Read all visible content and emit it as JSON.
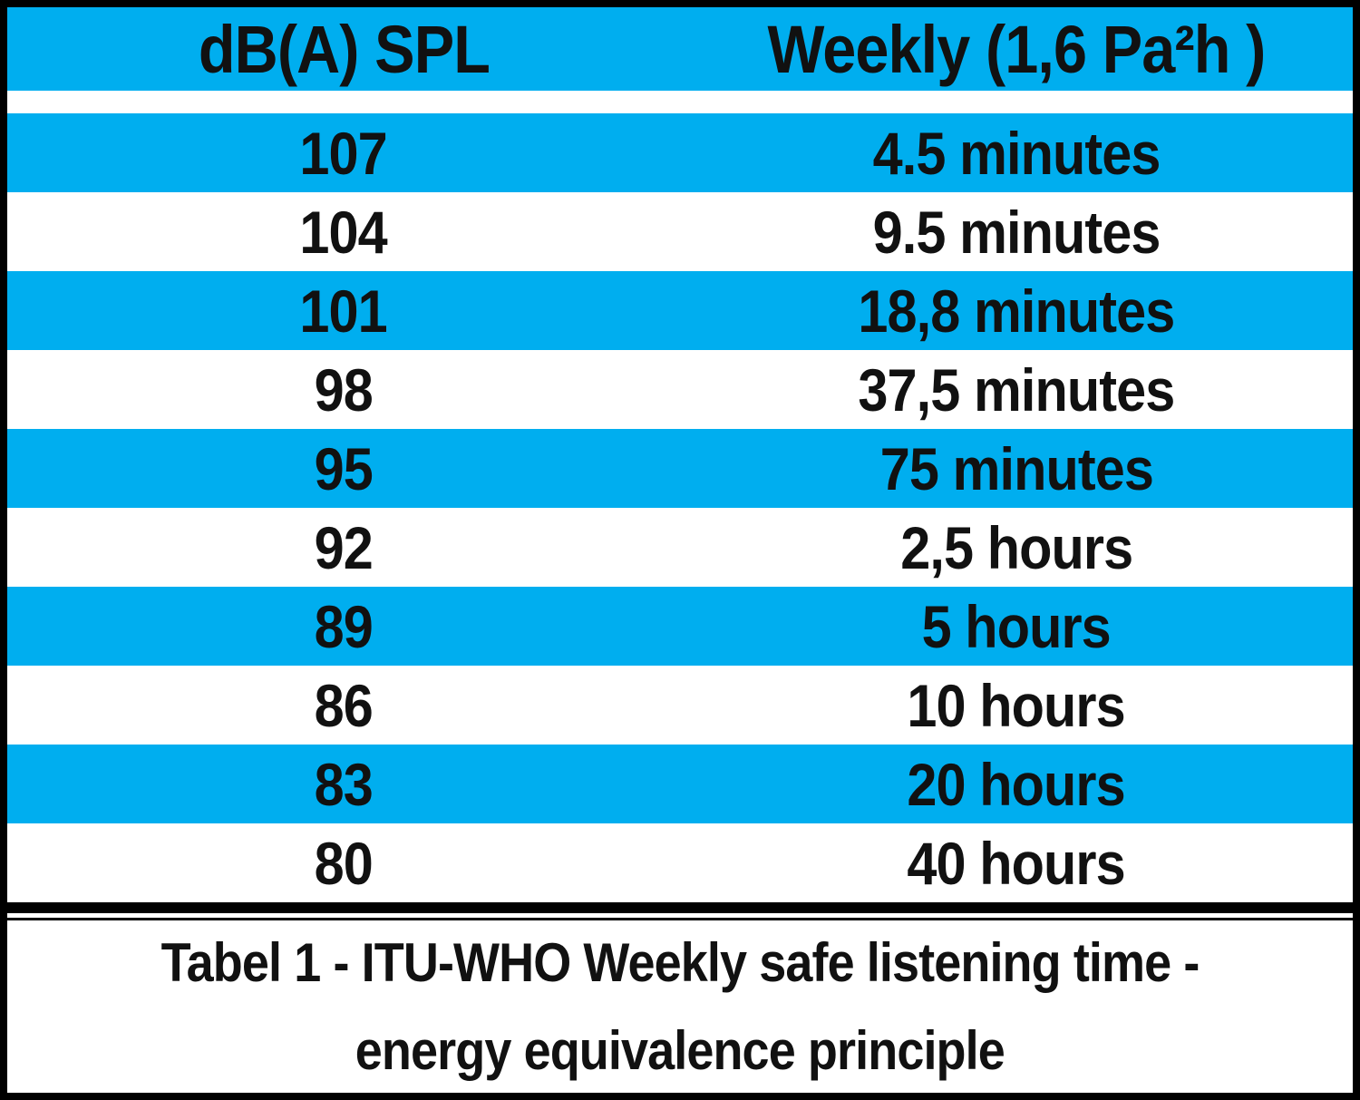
{
  "chart_data": {
    "type": "table",
    "title": "Tabel 1 - ITU-WHO Weekly safe listening time - energy equivalence principle",
    "columns": [
      "dB(A) SPL",
      "Weekly (1,6 Pa²h )"
    ],
    "rows": [
      [
        "107",
        "4.5 minutes"
      ],
      [
        "104",
        "9.5 minutes"
      ],
      [
        "101",
        "18,8 minutes"
      ],
      [
        "98",
        "37,5 minutes"
      ],
      [
        "95",
        "75 minutes"
      ],
      [
        "92",
        "2,5 hours"
      ],
      [
        "89",
        "5 hours"
      ],
      [
        "86",
        "10 hours"
      ],
      [
        "83",
        "20 hours"
      ],
      [
        "80",
        "40 hours"
      ]
    ],
    "spl_values_db": [
      107,
      104,
      101,
      98,
      95,
      92,
      89,
      86,
      83,
      80
    ],
    "weekly_time_labels": [
      "4.5 minutes",
      "9.5 minutes",
      "18,8 minutes",
      "37,5 minutes",
      "75 minutes",
      "2,5 hours",
      "5 hours",
      "10 hours",
      "20 hours",
      "40 hours"
    ],
    "layout": {
      "striped": true,
      "stripe_start": "blue",
      "grid_vertical": false
    }
  },
  "caption": {
    "line1": "Tabel 1 - ITU-WHO Weekly safe listening time -",
    "line2": "energy equivalence principle"
  },
  "colors": {
    "stripe_blue": "#00AEEF",
    "row_white": "#FFFFFF",
    "border_black": "#000000",
    "text_black": "#111111"
  }
}
